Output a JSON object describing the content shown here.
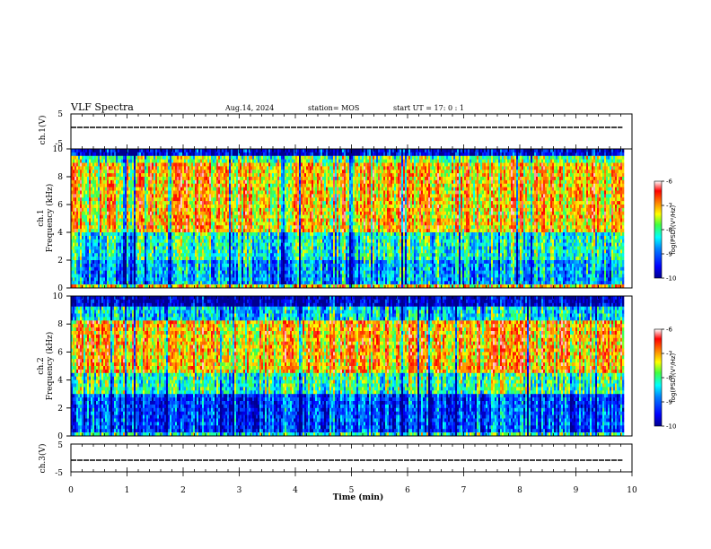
{
  "header": {
    "title": "VLF Spectra",
    "date": "Aug.14, 2024",
    "station": "station= MOS",
    "start": "start  UT =   17: 0  : 1"
  },
  "chart_data": [
    {
      "type": "line",
      "panel": "ch1-waveform",
      "ylabel": "ch.1(V)",
      "ylim": [
        -5,
        5
      ],
      "y_ticks": [
        "5",
        "-5"
      ],
      "xlim": [
        0,
        10
      ],
      "series": [
        {
          "x": [
            0,
            9.83
          ],
          "values": [
            0,
            0
          ]
        }
      ]
    },
    {
      "type": "heatmap",
      "panel": "ch1-spectrogram",
      "ylabel": "ch.1 Frequency (kHz)",
      "ylim": [
        0,
        10
      ],
      "y_ticks": [
        "0",
        "2",
        "4",
        "6",
        "8",
        "10"
      ],
      "xlim": [
        0,
        10
      ],
      "data_extent_min": 9.83,
      "colorbar": {
        "label": "log(PSD)(V²/Hz)",
        "range": [
          -10,
          -6
        ],
        "ticks": [
          "-6",
          "-7",
          "-8",
          "-9",
          "-10"
        ]
      }
    },
    {
      "type": "heatmap",
      "panel": "ch2-spectrogram",
      "ylabel": "ch.2 Frequency (kHz)",
      "ylim": [
        0,
        10
      ],
      "y_ticks": [
        "0",
        "2",
        "4",
        "6",
        "8",
        "10"
      ],
      "xlim": [
        0,
        10
      ],
      "data_extent_min": 9.83,
      "colorbar": {
        "label": "log(PSD)(V²/Hz)",
        "range": [
          -10,
          -6
        ],
        "ticks": [
          "-6",
          "-7",
          "-8",
          "-9",
          "-10"
        ]
      }
    },
    {
      "type": "line",
      "panel": "ch3-waveform",
      "ylabel": "ch.3(V)",
      "ylim": [
        -5,
        5
      ],
      "y_ticks": [
        "5",
        "-5"
      ],
      "xlim": [
        0,
        10
      ],
      "xlabel": "Time  (min)",
      "x_ticks": [
        "0",
        "1",
        "2",
        "3",
        "4",
        "5",
        "6",
        "7",
        "8",
        "9",
        "10"
      ],
      "series": [
        {
          "x": [
            0,
            9.83
          ],
          "values": [
            0,
            0
          ]
        }
      ]
    }
  ],
  "colors": {
    "jet": [
      "#00008f",
      "#0000ff",
      "#0080ff",
      "#00ffff",
      "#80ff80",
      "#ffff00",
      "#ff8000",
      "#ff0000",
      "#ffc8c8"
    ]
  }
}
